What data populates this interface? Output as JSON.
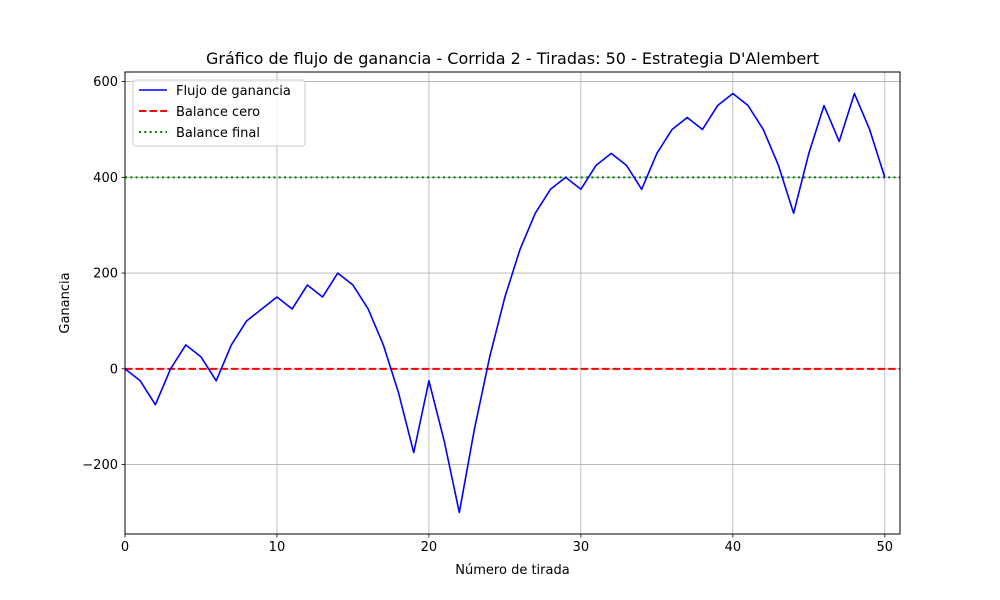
{
  "chart_data": {
    "type": "line",
    "title": "Gráfico de flujo de ganancia - Corrida 2 - Tiradas: 50 - Estrategia D'Alembert",
    "xlabel": "Número de tirada",
    "ylabel": "Ganancia",
    "xlim": [
      0,
      51
    ],
    "ylim": [
      -345,
      620
    ],
    "xticks": [
      0,
      10,
      20,
      30,
      40,
      50
    ],
    "yticks": [
      -200,
      0,
      200,
      400,
      600
    ],
    "ytick_labels": [
      "−200",
      "0",
      "200",
      "400",
      "600"
    ],
    "grid": true,
    "legend_position": "top-left",
    "series": [
      {
        "name": "Flujo de ganancia",
        "color": "#0000ff",
        "style": "solid",
        "x": [
          0,
          1,
          2,
          3,
          4,
          5,
          6,
          7,
          8,
          9,
          10,
          11,
          12,
          13,
          14,
          15,
          16,
          17,
          18,
          19,
          20,
          21,
          22,
          23,
          24,
          25,
          26,
          27,
          28,
          29,
          30,
          31,
          32,
          33,
          34,
          35,
          36,
          37,
          38,
          39,
          40,
          41,
          42,
          43,
          44,
          45,
          46,
          47,
          48,
          49,
          50
        ],
        "y": [
          0,
          -25,
          -75,
          0,
          50,
          25,
          -25,
          50,
          100,
          125,
          150,
          125,
          175,
          150,
          200,
          175,
          125,
          50,
          -50,
          -175,
          -25,
          -150,
          -300,
          -125,
          25,
          150,
          250,
          325,
          375,
          400,
          375,
          425,
          450,
          425,
          375,
          450,
          500,
          525,
          500,
          550,
          575,
          550,
          500,
          425,
          325,
          450,
          550,
          475,
          575,
          500,
          400
        ]
      },
      {
        "name": "Balance cero",
        "color": "#ff0000",
        "style": "dashed",
        "value": 0
      },
      {
        "name": "Balance final",
        "color": "#008000",
        "style": "dotted",
        "value": 400
      }
    ]
  }
}
